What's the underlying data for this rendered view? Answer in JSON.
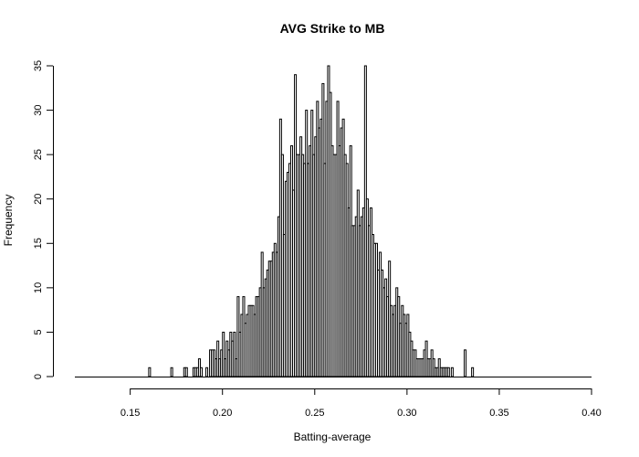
{
  "chart_data": {
    "type": "bar",
    "title": "AVG Strike to MB",
    "xlabel": "Batting-average",
    "ylabel": "Frequency",
    "xlim": [
      0.12,
      0.4
    ],
    "ylim": [
      0,
      35
    ],
    "x_ticks": [
      0.15,
      0.2,
      0.25,
      0.3,
      0.35,
      0.4
    ],
    "x_tick_labels": [
      "0.15",
      "0.20",
      "0.25",
      "0.30",
      "0.35",
      "0.40"
    ],
    "y_ticks": [
      0,
      5,
      10,
      15,
      20,
      25,
      30,
      35
    ],
    "y_tick_labels": [
      "0",
      "5",
      "10",
      "15",
      "20",
      "25",
      "30",
      "35"
    ],
    "bin_width": 0.001,
    "bin_start": 0.16,
    "values": [
      1,
      0,
      0,
      0,
      0,
      0,
      0,
      0,
      0,
      0,
      0,
      0,
      1,
      0,
      0,
      0,
      0,
      0,
      0,
      1,
      1,
      0,
      0,
      0,
      1,
      1,
      1,
      2,
      1,
      0,
      0,
      1,
      0,
      3,
      3,
      3,
      2,
      4,
      2,
      3,
      5,
      2,
      4,
      3,
      5,
      4,
      5,
      2,
      9,
      5,
      7,
      9,
      6,
      7,
      8,
      8,
      8,
      7,
      9,
      9,
      10,
      14,
      10,
      11,
      12,
      13,
      13,
      14,
      15,
      14,
      18,
      29,
      25,
      16,
      22,
      23,
      24,
      26,
      21,
      34,
      25,
      25,
      27,
      25,
      24,
      30,
      24,
      26,
      30,
      25,
      27,
      31,
      28,
      29,
      33,
      24,
      31,
      35,
      32,
      26,
      25,
      25,
      31,
      26,
      28,
      29,
      25,
      24,
      19,
      26,
      17,
      17,
      18,
      21,
      17,
      18,
      19,
      35,
      20,
      17,
      19,
      16,
      15,
      15,
      12,
      14,
      12,
      10,
      11,
      9,
      13,
      8,
      7,
      8,
      10,
      9,
      6,
      8,
      7,
      6,
      7,
      5,
      4,
      3,
      3,
      2,
      2,
      2,
      2,
      3,
      4,
      2,
      2,
      3,
      2,
      1,
      1,
      2,
      1,
      1,
      1,
      1,
      1,
      0,
      1,
      0,
      0,
      0,
      0,
      0,
      0,
      3,
      0,
      0,
      0,
      1,
      0,
      0,
      0,
      0
    ]
  }
}
